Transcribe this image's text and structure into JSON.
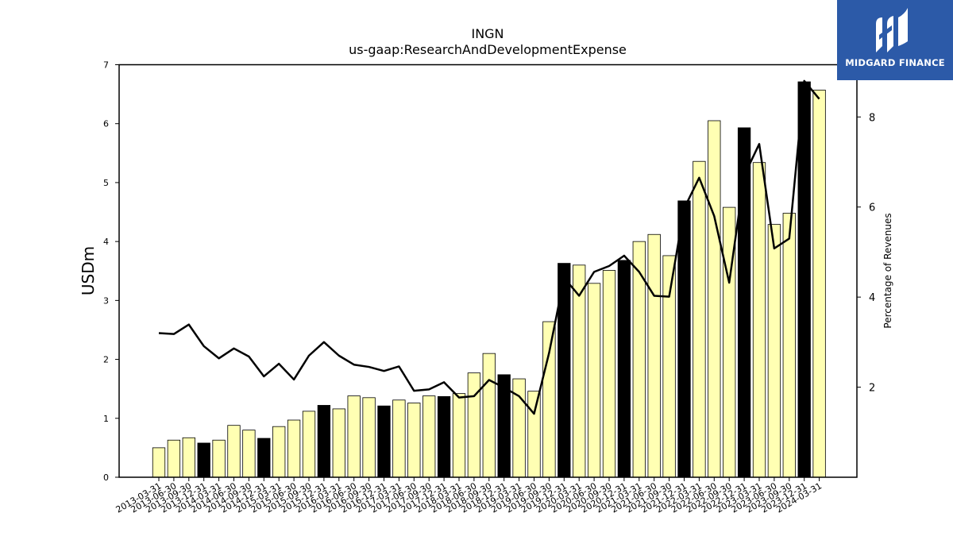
{
  "brand": {
    "name": "MIDGARD FINANCE",
    "logo_icon": "midgard-m-logo",
    "color": "#2c5aa8"
  },
  "chart_data": {
    "type": "bar",
    "title": "INGN",
    "subtitle": "us-gaap:ResearchAndDevelopmentExpense",
    "ylabel": "USDm",
    "y2label": "Percentage of Revenues",
    "ylim": [
      0,
      7
    ],
    "y2lim": [
      0,
      9.16
    ],
    "yticks": [
      0,
      1,
      2,
      3,
      4,
      5,
      6,
      7
    ],
    "y2ticks": [
      2,
      4,
      6,
      8
    ],
    "colors": {
      "quarter_bar": "#ffffb3",
      "fiscal_q4_bar": "#000000",
      "line": "#000000"
    },
    "categories": [
      "2013-03-31",
      "2013-06-30",
      "2013-09-30",
      "2013-12-31",
      "2014-03-31",
      "2014-06-30",
      "2014-09-30",
      "2014-12-31",
      "2015-03-31",
      "2015-06-30",
      "2015-09-30",
      "2015-12-31",
      "2016-03-31",
      "2016-06-30",
      "2016-09-30",
      "2016-12-31",
      "2017-03-31",
      "2017-06-30",
      "2017-09-30",
      "2017-12-31",
      "2018-03-31",
      "2018-06-30",
      "2018-09-30",
      "2018-12-31",
      "2019-03-31",
      "2019-06-30",
      "2019-09-30",
      "2019-12-31",
      "2020-03-31",
      "2020-06-30",
      "2020-09-30",
      "2020-12-31",
      "2021-03-31",
      "2021-06-30",
      "2021-09-30",
      "2021-12-31",
      "2022-03-31",
      "2022-06-30",
      "2022-09-30",
      "2022-12-31",
      "2023-03-31",
      "2023-06-30",
      "2023-09-30",
      "2023-12-31",
      "2024-03-31"
    ],
    "series": [
      {
        "kind": "bar",
        "values": [
          0.5,
          0.63,
          0.67,
          0.58,
          0.63,
          0.88,
          0.8,
          0.66,
          0.86,
          0.97,
          1.12,
          1.22,
          1.16,
          1.38,
          1.35,
          1.21,
          1.31,
          1.26,
          1.38,
          1.37,
          1.42,
          1.77,
          2.1,
          1.74,
          1.67,
          1.46,
          2.64,
          3.63,
          3.6,
          3.29,
          3.51,
          3.68,
          4.0,
          4.12,
          3.76,
          4.69,
          5.36,
          6.05,
          4.58,
          5.93,
          5.34,
          4.29,
          4.48,
          6.71,
          6.57
        ],
        "highlight": [
          false,
          false,
          false,
          true,
          false,
          false,
          false,
          true,
          false,
          false,
          false,
          true,
          false,
          false,
          false,
          true,
          false,
          false,
          false,
          true,
          false,
          false,
          false,
          true,
          false,
          false,
          false,
          true,
          false,
          false,
          false,
          true,
          false,
          false,
          false,
          true,
          false,
          false,
          false,
          true,
          false,
          false,
          false,
          true,
          false
        ]
      },
      {
        "kind": "line",
        "axis": "right",
        "values": [
          3.2,
          3.18,
          3.39,
          2.91,
          2.64,
          2.86,
          2.68,
          2.24,
          2.52,
          2.17,
          2.7,
          3.0,
          2.7,
          2.5,
          2.45,
          2.36,
          2.46,
          1.92,
          1.95,
          2.11,
          1.77,
          1.8,
          2.16,
          1.99,
          1.8,
          1.41,
          2.76,
          4.43,
          4.03,
          4.56,
          4.69,
          4.92,
          4.56,
          4.03,
          4.01,
          5.97,
          6.65,
          5.8,
          4.32,
          6.7,
          7.4,
          5.08,
          5.3,
          8.8,
          8.4
        ]
      }
    ]
  }
}
